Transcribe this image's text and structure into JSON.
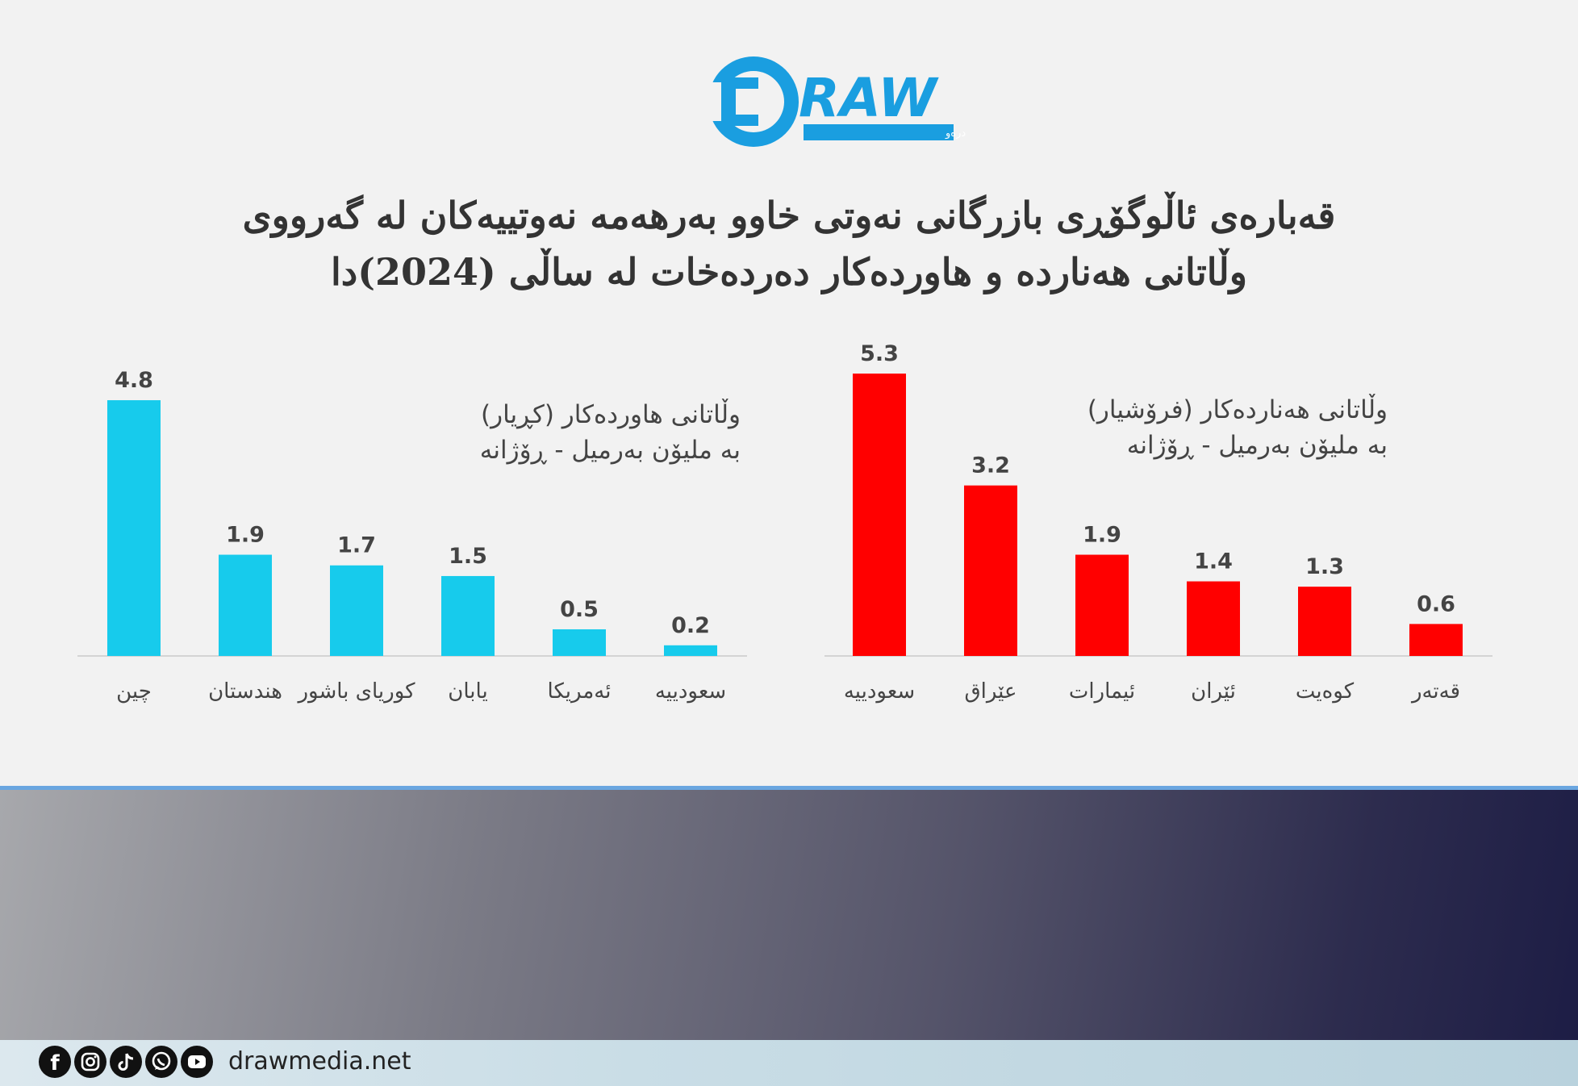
{
  "logo": {
    "wordmark": "RAW",
    "tagline": "دامەزراوەی میدیایی درەو",
    "brand_color": "#1a9ee0"
  },
  "title": {
    "line1": "قەبارەی ئاڵوگۆڕی بازرگانی نەوتی خاوو بەرهەمە نەوتییەکان لە گەرووی",
    "line2": "وڵاتانی هەنارده و هاوردەکار دەردەخات لە ساڵی (2024)دا"
  },
  "chart_data": [
    {
      "type": "bar",
      "subtitle_line1": "وڵاتانی هاوردەکار (کڕیار)",
      "subtitle_line2": "بە ملیۆن بەرمیل - ڕۆژانە",
      "categories": [
        "چین",
        "هندستان",
        "کوریای باشور",
        "یابان",
        "ئەمریکا",
        "سعودییە"
      ],
      "values": [
        4.8,
        1.9,
        1.7,
        1.5,
        0.5,
        0.2
      ],
      "value_labels": [
        "4.8",
        "1.9",
        "1.7",
        "1.5",
        "0.5",
        "0.2"
      ],
      "color": "#17cbec",
      "ylim": [
        0,
        5.3
      ]
    },
    {
      "type": "bar",
      "subtitle_line1": "وڵاتانی هەناردەکار (فرۆشیار)",
      "subtitle_line2": "بە ملیۆن بەرمیل - ڕۆژانە",
      "categories": [
        "سعودییە",
        "عێراق",
        "ئیمارات",
        "ئێران",
        "کوەیت",
        "قەتەر"
      ],
      "values": [
        5.3,
        3.2,
        1.9,
        1.4,
        1.3,
        0.6
      ],
      "value_labels": [
        "5.3",
        "3.2",
        "1.9",
        "1.4",
        "1.3",
        "0.6"
      ],
      "color": "#ff0000",
      "ylim": [
        0,
        5.3
      ]
    }
  ],
  "footer": {
    "url": "drawmedia.net",
    "social_icons": [
      "facebook-icon",
      "instagram-icon",
      "tiktok-icon",
      "whatsapp-icon",
      "youtube-icon"
    ]
  }
}
